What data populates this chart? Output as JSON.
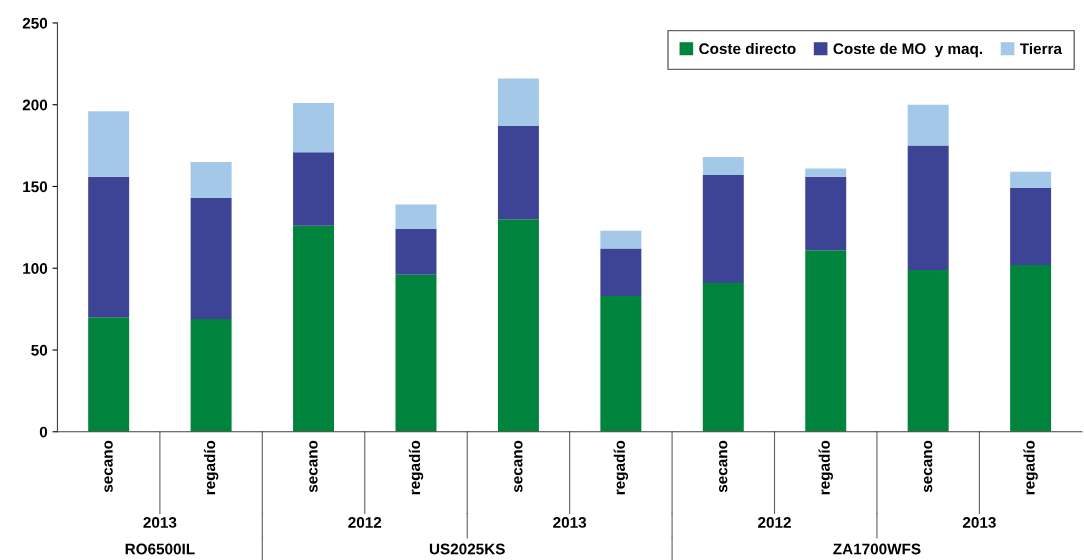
{
  "chart_data": {
    "type": "bar",
    "stacked": true,
    "categories": [
      "secano",
      "regadío",
      "secano",
      "regadío",
      "secano",
      "regadío",
      "secano",
      "regadío",
      "secano",
      "regadío"
    ],
    "series": [
      {
        "name": "Coste directo",
        "color": "#00843d",
        "values": [
          70,
          69,
          126,
          96,
          130,
          83,
          91,
          111,
          99,
          102
        ]
      },
      {
        "name": "Coste de MO  y maq.",
        "color": "#3d4495",
        "values": [
          86,
          74,
          45,
          28,
          57,
          29,
          66,
          45,
          76,
          47
        ]
      },
      {
        "name": "Tierra",
        "color": "#a4c8e8",
        "values": [
          40,
          22,
          30,
          15,
          29,
          11,
          11,
          5,
          25,
          10
        ]
      }
    ],
    "ylim": [
      0,
      250
    ],
    "yticks": [
      0,
      50,
      100,
      150,
      200,
      250
    ],
    "grid": false,
    "legend": "top right",
    "annotations": [
      "2013",
      "2012",
      "2013",
      "2012",
      "2013",
      "RO6500IL",
      "US2025KS",
      "ZA1700WFS"
    ]
  }
}
